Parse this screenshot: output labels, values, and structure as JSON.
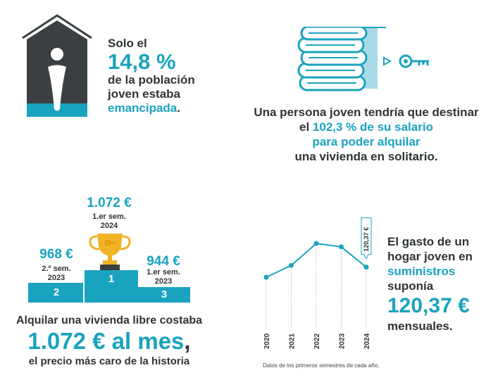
{
  "emancipation": {
    "line1": "Solo el",
    "value": "14,8 %",
    "line3": "de la población",
    "line4": "joven estaba",
    "highlight": "emancipada",
    "suffix": ".",
    "fill_fraction": 0.1,
    "icon": "house-person-icon"
  },
  "salary": {
    "line1": "Una persona joven tendría que destinar",
    "line2_prefix": "el ",
    "line2_value": "102,3 % de su salario",
    "line3": "para poder alquilar",
    "line4": "una vivienda en solitario.",
    "icons": [
      "coins-stack-icon",
      "arrow-right-icon",
      "key-icon"
    ]
  },
  "podium": {
    "first": {
      "price": "1.072 €",
      "sem": "1.er sem.",
      "year": "2024",
      "place": "1"
    },
    "second": {
      "price": "968 €",
      "sem": "2.º sem.",
      "year": "2023",
      "place": "2"
    },
    "third": {
      "price": "944 €",
      "sem": "1.er sem.",
      "year": "2023",
      "place": "3"
    },
    "icon": "trophy-icon",
    "line1": "Alquilar una vivienda libre costaba",
    "big": "1.072 € al mes",
    "big_suffix": ",",
    "line3": "el precio más caro de la historia"
  },
  "supplies": {
    "line1": "El gasto de un",
    "line2": "hogar joven en",
    "highlight": "suministros",
    "line4": "suponía",
    "value": "120,37 €",
    "line6": "mensuales."
  },
  "chart_data": {
    "type": "line",
    "x": [
      "2020",
      "2021",
      "2022",
      "2023",
      "2024"
    ],
    "series": [
      {
        "values": [
          100,
          107,
          120,
          118,
          106
        ]
      }
    ],
    "ylim": [
      85,
      135
    ],
    "annotation": "120,37 €",
    "note": "Datos de los primeros semestres de cada año.",
    "color": "#1aa3bf"
  },
  "colors": {
    "accent": "#1aa3bf",
    "dark": "#3a3f42",
    "light_accent": "#a8dbe6"
  }
}
